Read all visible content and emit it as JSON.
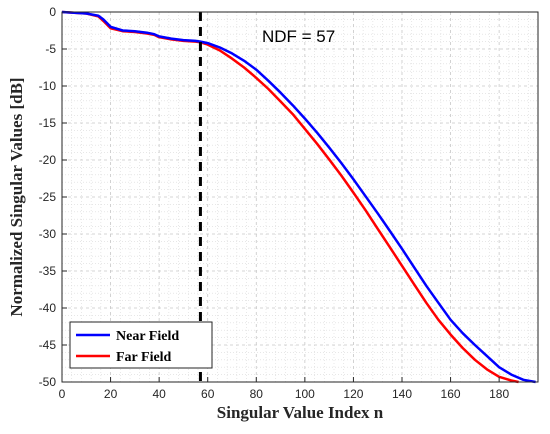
{
  "chart_data": {
    "type": "line",
    "xlabel": "Singular Value Index n",
    "ylabel": "Normalized Singular Values [dB]",
    "xlim": [
      0,
      196
    ],
    "ylim": [
      -50,
      0
    ],
    "xticks": [
      "0",
      "20",
      "40",
      "60",
      "80",
      "100",
      "120",
      "140",
      "160",
      "180"
    ],
    "xtick_values": [
      0,
      20,
      40,
      60,
      80,
      100,
      120,
      140,
      160,
      180
    ],
    "yticks": [
      "0",
      "-5",
      "-10",
      "-15",
      "-20",
      "-25",
      "-30",
      "-35",
      "-40",
      "-45",
      "-50"
    ],
    "ytick_values": [
      0,
      -5,
      -10,
      -15,
      -20,
      -25,
      -30,
      -35,
      -40,
      -45,
      -50
    ],
    "grid": true,
    "minor_grid": true,
    "legend": "bottom-left",
    "annotation": {
      "text": "NDF = 57",
      "x_marker": 57
    },
    "series": [
      {
        "name": "Near Field",
        "color": "#0000ff",
        "x": [
          0,
          5,
          10,
          15,
          17,
          20,
          25,
          30,
          35,
          38,
          40,
          45,
          50,
          55,
          57,
          60,
          65,
          70,
          75,
          80,
          85,
          90,
          95,
          100,
          105,
          110,
          115,
          120,
          125,
          130,
          135,
          140,
          145,
          150,
          155,
          160,
          165,
          170,
          175,
          180,
          185,
          190,
          195
        ],
        "y": [
          0,
          -0.1,
          -0.2,
          -0.5,
          -1.0,
          -2.0,
          -2.5,
          -2.6,
          -2.8,
          -3.0,
          -3.3,
          -3.6,
          -3.8,
          -3.9,
          -4.0,
          -4.2,
          -4.8,
          -5.6,
          -6.6,
          -7.8,
          -9.3,
          -10.9,
          -12.6,
          -14.4,
          -16.3,
          -18.3,
          -20.4,
          -22.6,
          -24.9,
          -27.2,
          -29.6,
          -32.0,
          -34.5,
          -37.0,
          -39.3,
          -41.6,
          -43.4,
          -45.0,
          -46.5,
          -48.0,
          -49.0,
          -49.7,
          -50.0
        ]
      },
      {
        "name": "Far Field",
        "color": "#ff0000",
        "x": [
          0,
          5,
          10,
          15,
          17,
          20,
          25,
          30,
          35,
          38,
          40,
          45,
          50,
          55,
          57,
          60,
          65,
          70,
          75,
          80,
          85,
          90,
          95,
          100,
          105,
          110,
          115,
          120,
          125,
          130,
          135,
          140,
          145,
          150,
          155,
          160,
          165,
          170,
          175,
          180,
          185,
          188
        ],
        "y": [
          0,
          -0.1,
          -0.2,
          -0.6,
          -1.2,
          -2.2,
          -2.6,
          -2.7,
          -2.9,
          -3.1,
          -3.4,
          -3.7,
          -3.9,
          -4.0,
          -4.1,
          -4.4,
          -5.2,
          -6.3,
          -7.5,
          -8.9,
          -10.4,
          -12.1,
          -13.8,
          -15.8,
          -17.8,
          -19.9,
          -22.1,
          -24.4,
          -26.8,
          -29.3,
          -31.8,
          -34.3,
          -36.8,
          -39.3,
          -41.6,
          -43.6,
          -45.4,
          -47.0,
          -48.3,
          -49.3,
          -49.8,
          -50.0
        ]
      }
    ]
  }
}
